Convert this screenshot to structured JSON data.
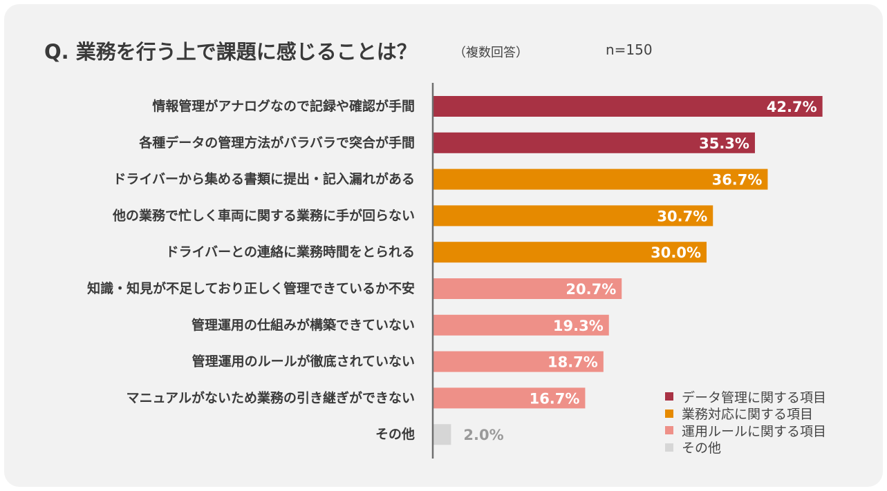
{
  "title": "Q. 業務を行う上で課題に感じることは？",
  "subtitle": "（複数回答）",
  "n_label": "n=150",
  "colors": {
    "data": "#a83244",
    "business": "#e68a00",
    "operation": "#ee9088",
    "other": "#d6d6d6"
  },
  "legend": [
    {
      "label": "データ管理に関する項目",
      "color": "#a83244"
    },
    {
      "label": "業務対応に関する項目",
      "color": "#e68a00"
    },
    {
      "label": "運用ルールに関する項目",
      "color": "#ee9088"
    },
    {
      "label": "その他",
      "color": "#d6d6d6"
    }
  ],
  "chart_data": {
    "type": "bar",
    "orientation": "horizontal",
    "categories": [
      "情報管理がアナログなので記録や確認が手間",
      "各種データの管理方法がバラバラで突合が手間",
      "ドライバーから集める書類に提出・記入漏れがある",
      "他の業務で忙しく車両に関する業務に手が回らない",
      "ドライバーとの連絡に業務時間をとられる",
      "知識・知見が不足しており正しく管理できているか不安",
      "管理運用の仕組みが構築できていない",
      "管理運用のルールが徹底されていない",
      "マニュアルがないため業務の引き継ぎができない",
      "その他"
    ],
    "values": [
      42.7,
      35.3,
      36.7,
      30.7,
      30.0,
      20.7,
      19.3,
      18.7,
      16.7,
      2.0
    ],
    "value_labels": [
      "42.7%",
      "35.3%",
      "36.7%",
      "30.7%",
      "30.0%",
      "20.7%",
      "19.3%",
      "18.7%",
      "16.7%",
      "2.0%"
    ],
    "groups": [
      "data",
      "data",
      "business",
      "business",
      "business",
      "operation",
      "operation",
      "operation",
      "operation",
      "other"
    ],
    "legend_position": "bottom-right",
    "grid": false
  }
}
